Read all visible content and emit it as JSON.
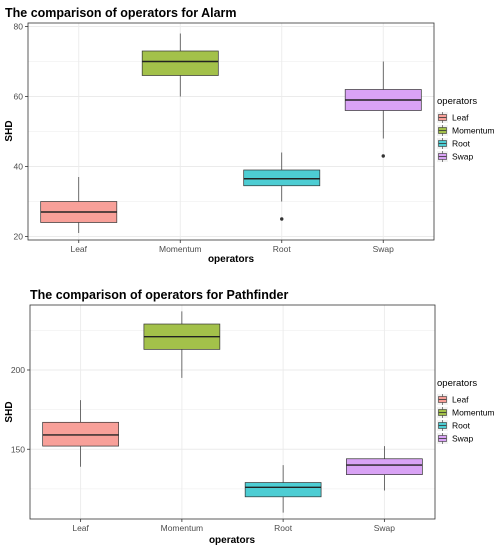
{
  "chart_data": [
    {
      "type": "box",
      "title": "The comparison of operators for Alarm",
      "xlabel": "operators",
      "ylabel": "SHD",
      "ylim": [
        19,
        81
      ],
      "yticks": [
        20,
        40,
        60,
        80
      ],
      "grid": true,
      "legend_position": "right",
      "legend_title": "operators",
      "categories": [
        "Leaf",
        "Momentum",
        "Root",
        "Swap"
      ],
      "colors": [
        "#F8A099",
        "#A3C14A",
        "#4DCDD3",
        "#D9A3F5"
      ],
      "boxes": [
        {
          "name": "Leaf",
          "whisker_low": 21,
          "q1": 24,
          "median": 27,
          "q3": 30,
          "whisker_high": 37,
          "outliers": []
        },
        {
          "name": "Momentum",
          "whisker_low": 60,
          "q1": 66,
          "median": 70,
          "q3": 73,
          "whisker_high": 78,
          "outliers": []
        },
        {
          "name": "Root",
          "whisker_low": 30,
          "q1": 34.5,
          "median": 36.5,
          "q3": 39,
          "whisker_high": 44,
          "outliers": [
            25
          ]
        },
        {
          "name": "Swap",
          "whisker_low": 48,
          "q1": 56,
          "median": 59,
          "q3": 62,
          "whisker_high": 70,
          "outliers": [
            43
          ]
        }
      ]
    },
    {
      "type": "box",
      "title": "The comparison of operators for Pathfinder",
      "xlabel": "operators",
      "ylabel": "SHD",
      "ylim": [
        106,
        241
      ],
      "yticks": [
        150,
        200
      ],
      "grid": true,
      "legend_position": "right",
      "legend_title": "operators",
      "categories": [
        "Leaf",
        "Momentum",
        "Root",
        "Swap"
      ],
      "colors": [
        "#F8A099",
        "#A3C14A",
        "#4DCDD3",
        "#D9A3F5"
      ],
      "boxes": [
        {
          "name": "Leaf",
          "whisker_low": 139,
          "q1": 152,
          "median": 159,
          "q3": 167,
          "whisker_high": 181,
          "outliers": []
        },
        {
          "name": "Momentum",
          "whisker_low": 195,
          "q1": 213,
          "median": 221,
          "q3": 229,
          "whisker_high": 237,
          "outliers": []
        },
        {
          "name": "Root",
          "whisker_low": 110,
          "q1": 120,
          "median": 126,
          "q3": 129,
          "whisker_high": 140,
          "outliers": []
        },
        {
          "name": "Swap",
          "whisker_low": 124,
          "q1": 134,
          "median": 140,
          "q3": 144,
          "whisker_high": 152,
          "outliers": []
        }
      ]
    }
  ]
}
